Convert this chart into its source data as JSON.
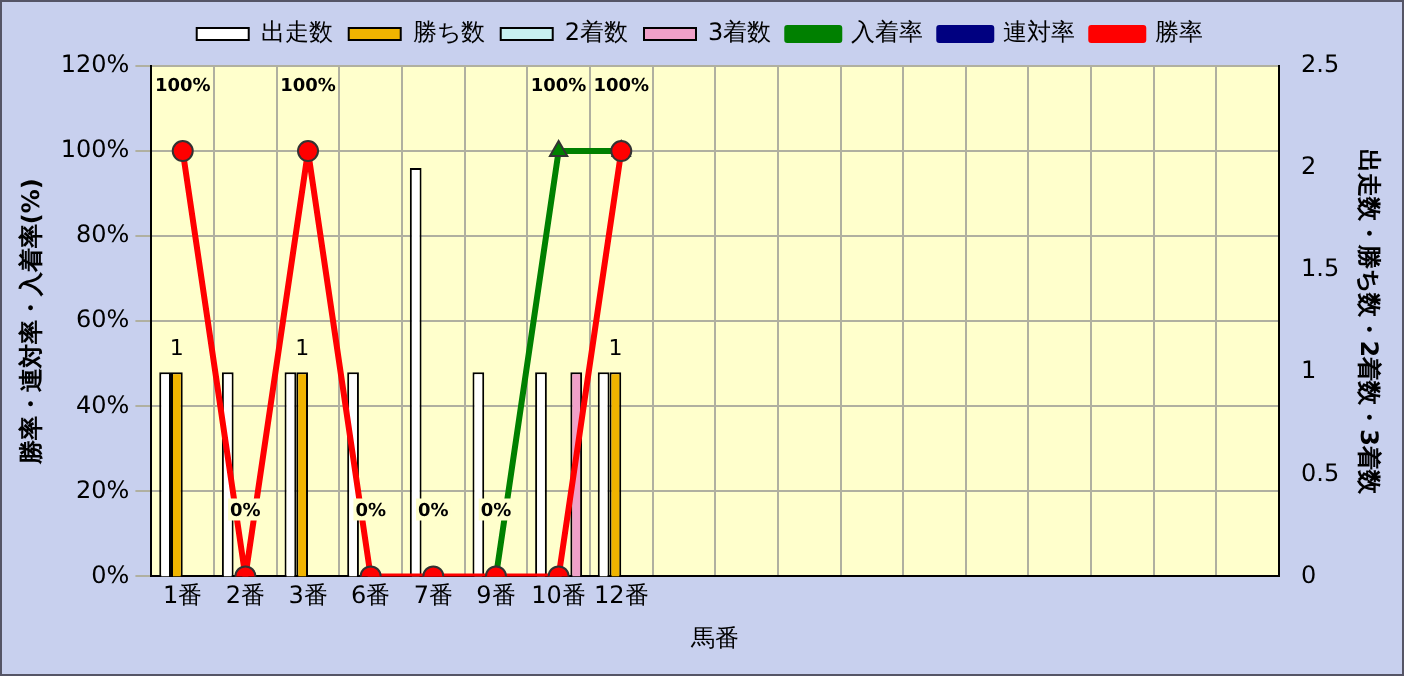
{
  "chart_data": {
    "type": "bar",
    "xlabel": "馬番",
    "ylabel": "勝率・連対率・入着率(%)",
    "y2label": "出走数・勝ち数・2着数・3着数",
    "categories": [
      "1番",
      "2番",
      "3番",
      "6番",
      "7番",
      "9番",
      "10番",
      "12番",
      null,
      null,
      null,
      null,
      null,
      null,
      null,
      null,
      null,
      null
    ],
    "series": [
      {
        "name": "出走数",
        "axis": "y2",
        "color": "#ffffff",
        "values": [
          1,
          1,
          1,
          1,
          2,
          1,
          1,
          1,
          null,
          null,
          null,
          null,
          null,
          null,
          null,
          null,
          null,
          null
        ]
      },
      {
        "name": "勝ち数",
        "axis": "y2",
        "color": "#f0b400",
        "values": [
          1,
          0,
          1,
          0,
          0,
          0,
          0,
          1,
          null,
          null,
          null,
          null,
          null,
          null,
          null,
          null,
          null,
          null
        ],
        "value_labels": [
          "1",
          null,
          "1",
          null,
          null,
          null,
          null,
          "1",
          null,
          null,
          null,
          null,
          null,
          null,
          null,
          null,
          null,
          null
        ]
      },
      {
        "name": "2着数",
        "axis": "y2",
        "color": "#c8f0f0",
        "values": [
          0,
          0,
          0,
          0,
          0,
          0,
          0,
          0,
          null,
          null,
          null,
          null,
          null,
          null,
          null,
          null,
          null,
          null
        ]
      },
      {
        "name": "3着数",
        "axis": "y2",
        "color": "#f0a0c8",
        "values": [
          0,
          0,
          0,
          0,
          0,
          0,
          1,
          0,
          null,
          null,
          null,
          null,
          null,
          null,
          null,
          null,
          null,
          null
        ]
      },
      {
        "name": "入着率",
        "type": "line",
        "axis": "y",
        "color": "#008000",
        "marker": "triangle",
        "values": [
          null,
          null,
          null,
          null,
          null,
          0,
          100,
          100,
          null,
          null,
          null,
          null,
          null,
          null,
          null,
          null,
          null,
          null
        ],
        "value_labels": [
          null,
          null,
          null,
          null,
          null,
          null,
          "100%",
          null,
          null,
          null,
          null,
          null,
          null,
          null,
          null,
          null,
          null,
          null
        ]
      },
      {
        "name": "連対率",
        "type": "line",
        "axis": "y",
        "color": "#000080",
        "marker": "diamond",
        "values": [
          null,
          null,
          null,
          null,
          null,
          null,
          null,
          null,
          null,
          null,
          null,
          null,
          null,
          null,
          null,
          null,
          null,
          null
        ]
      },
      {
        "name": "勝率",
        "type": "line",
        "axis": "y",
        "color": "#ff0000",
        "marker": "circle",
        "values": [
          100,
          0,
          100,
          0,
          0,
          0,
          0,
          100,
          null,
          null,
          null,
          null,
          null,
          null,
          null,
          null,
          null,
          null
        ],
        "value_labels": [
          "100%",
          "0%",
          "100%",
          "0%",
          "0%",
          "0%",
          null,
          "100%",
          null,
          null,
          null,
          null,
          null,
          null,
          null,
          null,
          null,
          null
        ]
      }
    ],
    "ylim": [
      0,
      120
    ],
    "yticks": [
      {
        "value": 0,
        "label": "0%"
      },
      {
        "value": 20,
        "label": "20%"
      },
      {
        "value": 40,
        "label": "40%"
      },
      {
        "value": 60,
        "label": "60%"
      },
      {
        "value": 80,
        "label": "80%"
      },
      {
        "value": 100,
        "label": "100%"
      },
      {
        "value": 120,
        "label": "120%"
      }
    ],
    "y2lim": [
      0,
      2.5
    ],
    "y2ticks": [
      0,
      0.5,
      1,
      1.5,
      2,
      2.5
    ],
    "grid": true,
    "legend": "top"
  }
}
